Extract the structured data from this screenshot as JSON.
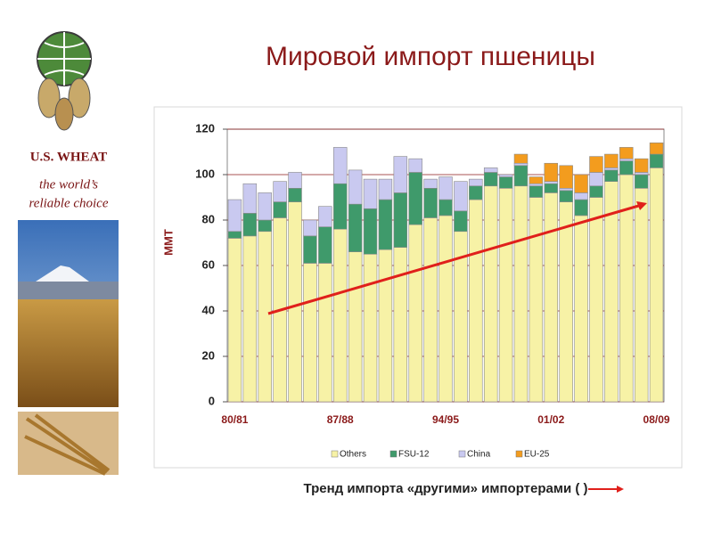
{
  "sidebar": {
    "brand": "U.S. WHEAT",
    "tagline_1": "the world’s",
    "tagline_2": "reliable choice"
  },
  "caption": "Тренд импорта «другими» импортерами (      )",
  "chart_data": {
    "type": "bar",
    "stacked": true,
    "title": "Мировой импорт пшеницы",
    "y_label": "MMT",
    "categories": [
      "80/81",
      null,
      null,
      null,
      null,
      null,
      null,
      "87/88",
      null,
      null,
      null,
      null,
      null,
      null,
      "94/95",
      null,
      null,
      null,
      null,
      null,
      null,
      "01/02",
      null,
      null,
      null,
      null,
      null,
      null,
      "08/09"
    ],
    "series": [
      {
        "name": "Others",
        "color": "#f7f2a6",
        "values": [
          72,
          73,
          75,
          81,
          88,
          61,
          61,
          76,
          66,
          65,
          67,
          68,
          78,
          81,
          82,
          75,
          89,
          95,
          94,
          95,
          90,
          92,
          88,
          82,
          90,
          97,
          100,
          94,
          103
        ]
      },
      {
        "name": "FSU-12",
        "color": "#3f9a6b",
        "values": [
          3,
          10,
          5,
          7,
          6,
          12,
          16,
          20,
          21,
          20,
          22,
          24,
          23,
          13,
          7,
          9,
          6,
          6,
          5,
          9,
          5,
          4,
          5,
          7,
          5,
          5,
          6,
          6,
          6
        ]
      },
      {
        "name": "China",
        "color": "#c9c9f0",
        "values": [
          14,
          13,
          12,
          9,
          7,
          7,
          9,
          16,
          15,
          13,
          9,
          16,
          6,
          4,
          10,
          13,
          3,
          2,
          1,
          1,
          1,
          1,
          1,
          3,
          6,
          1,
          1,
          1,
          0
        ]
      },
      {
        "name": "EU-25",
        "color": "#f39c1e",
        "values": [
          0,
          0,
          0,
          0,
          0,
          0,
          0,
          0,
          0,
          0,
          0,
          0,
          0,
          0,
          0,
          0,
          0,
          0,
          0,
          4,
          3,
          8,
          10,
          8,
          7,
          6,
          5,
          6,
          5
        ]
      }
    ],
    "ylim": [
      0,
      120
    ],
    "yticks": [
      0,
      20,
      40,
      60,
      80,
      100,
      120
    ],
    "grid": true,
    "legend": "bottom"
  }
}
